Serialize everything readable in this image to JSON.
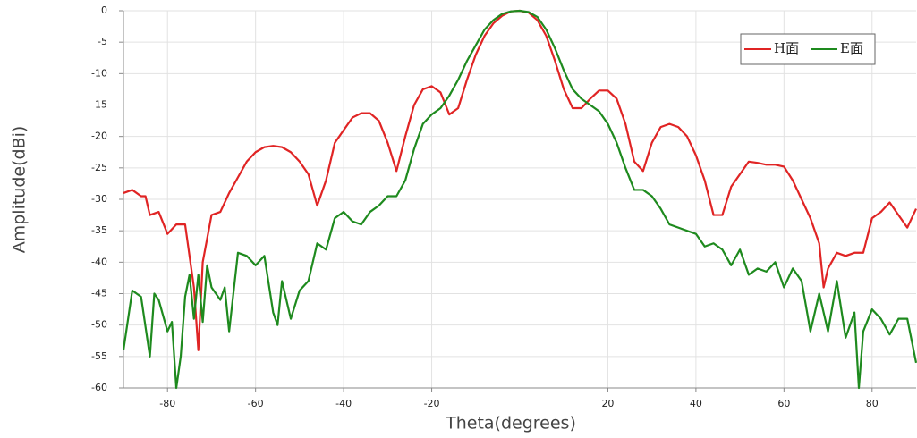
{
  "chart_data": {
    "type": "line",
    "xlabel": "Theta(degrees)",
    "ylabel": "Amplitude(dBi)",
    "xlim": [
      -90,
      90
    ],
    "ylim": [
      -60,
      0
    ],
    "xticks": [
      -80,
      -60,
      -40,
      -20,
      20,
      40,
      60,
      80
    ],
    "yticks": [
      0,
      -5,
      -10,
      -15,
      -20,
      -25,
      -30,
      -35,
      -40,
      -45,
      -50,
      -55,
      -60
    ],
    "grid": true,
    "legend": "upper right",
    "series": [
      {
        "name": "H面",
        "color": "#e02424",
        "x": [
          -90,
          -88,
          -86,
          -85,
          -84,
          -82,
          -80,
          -78,
          -76,
          -74,
          -73,
          -72,
          -70,
          -68,
          -66,
          -64,
          -62,
          -60,
          -58,
          -56,
          -54,
          -52,
          -50,
          -48,
          -46,
          -44,
          -42,
          -40,
          -38,
          -36,
          -34,
          -32,
          -30,
          -28,
          -26,
          -24,
          -22,
          -20,
          -18,
          -16,
          -14,
          -12,
          -10,
          -8,
          -6,
          -4,
          -2,
          0,
          2,
          4,
          6,
          8,
          10,
          12,
          14,
          16,
          18,
          20,
          22,
          24,
          26,
          28,
          30,
          32,
          34,
          36,
          38,
          40,
          42,
          44,
          46,
          48,
          50,
          52,
          54,
          56,
          58,
          60,
          62,
          64,
          66,
          68,
          69,
          70,
          72,
          74,
          76,
          78,
          80,
          82,
          84,
          86,
          88,
          90
        ],
        "values": [
          -29,
          -28.5,
          -29.5,
          -29.5,
          -32.5,
          -32,
          -35.5,
          -34,
          -34,
          -44,
          -54,
          -40,
          -32.5,
          -32,
          -29,
          -26.5,
          -24,
          -22.5,
          -21.7,
          -21.5,
          -21.7,
          -22.5,
          -24,
          -26,
          -31,
          -27,
          -21,
          -19,
          -17,
          -16.3,
          -16.3,
          -17.5,
          -21,
          -25.5,
          -20,
          -15,
          -12.5,
          -12,
          -13,
          -16.5,
          -15.5,
          -11,
          -7,
          -4,
          -2,
          -0.8,
          -0.1,
          0,
          -0.3,
          -1.5,
          -4,
          -8,
          -12.5,
          -15.5,
          -15.5,
          -14,
          -12.7,
          -12.7,
          -14,
          -18,
          -24,
          -25.5,
          -21,
          -18.5,
          -18,
          -18.5,
          -20,
          -23,
          -27,
          -32.5,
          -32.5,
          -28,
          -26,
          -24,
          -24.2,
          -24.5,
          -24.5,
          -24.8,
          -27,
          -30,
          -33,
          -37,
          -44,
          -41,
          -38.5,
          -39,
          -38.5,
          -38.5,
          -33,
          -32,
          -30.5,
          -32.5,
          -34.5,
          -31.5
        ]
      },
      {
        "name": "E面",
        "color": "#1e8a1e",
        "x": [
          -90,
          -88,
          -86,
          -84,
          -83,
          -82,
          -80,
          -79,
          -78,
          -77,
          -76,
          -75,
          -74,
          -73,
          -72,
          -71,
          -70,
          -68,
          -67,
          -66,
          -64,
          -62,
          -60,
          -58,
          -56,
          -55,
          -54,
          -52,
          -50,
          -48,
          -46,
          -44,
          -42,
          -40,
          -38,
          -36,
          -34,
          -32,
          -30,
          -28,
          -26,
          -24,
          -22,
          -20,
          -18,
          -16,
          -14,
          -12,
          -10,
          -8,
          -6,
          -4,
          -2,
          0,
          2,
          4,
          6,
          8,
          10,
          12,
          14,
          16,
          18,
          20,
          22,
          24,
          26,
          28,
          30,
          32,
          34,
          36,
          38,
          40,
          42,
          44,
          46,
          48,
          50,
          52,
          54,
          56,
          58,
          60,
          62,
          64,
          66,
          68,
          70,
          72,
          74,
          76,
          77,
          78,
          80,
          82,
          84,
          86,
          88,
          90
        ],
        "values": [
          -54,
          -44.5,
          -45.5,
          -55,
          -45,
          -46,
          -51,
          -49.5,
          -60,
          -55,
          -45.5,
          -42,
          -49,
          -42,
          -49.5,
          -40.5,
          -44,
          -46,
          -44,
          -51,
          -38.5,
          -39,
          -40.5,
          -39,
          -48,
          -50,
          -43,
          -49,
          -44.5,
          -43,
          -37,
          -38,
          -33,
          -32,
          -33.5,
          -34,
          -32,
          -31,
          -29.5,
          -29.5,
          -27,
          -22,
          -18,
          -16.5,
          -15.5,
          -13.5,
          -11,
          -8,
          -5.5,
          -3,
          -1.5,
          -0.5,
          -0.1,
          0,
          -0.2,
          -1,
          -3,
          -6,
          -9.5,
          -12.5,
          -14,
          -15,
          -16,
          -18,
          -21,
          -25,
          -28.5,
          -28.5,
          -29.5,
          -31.5,
          -34,
          -34.5,
          -35,
          -35.5,
          -37.5,
          -37,
          -38,
          -40.5,
          -38,
          -42,
          -41,
          -41.5,
          -40,
          -44,
          -41,
          -43,
          -51,
          -45,
          -51,
          -43,
          -52,
          -48,
          -60,
          -51,
          -47.5,
          -49,
          -51.5,
          -49,
          -49,
          -56
        ]
      }
    ]
  }
}
